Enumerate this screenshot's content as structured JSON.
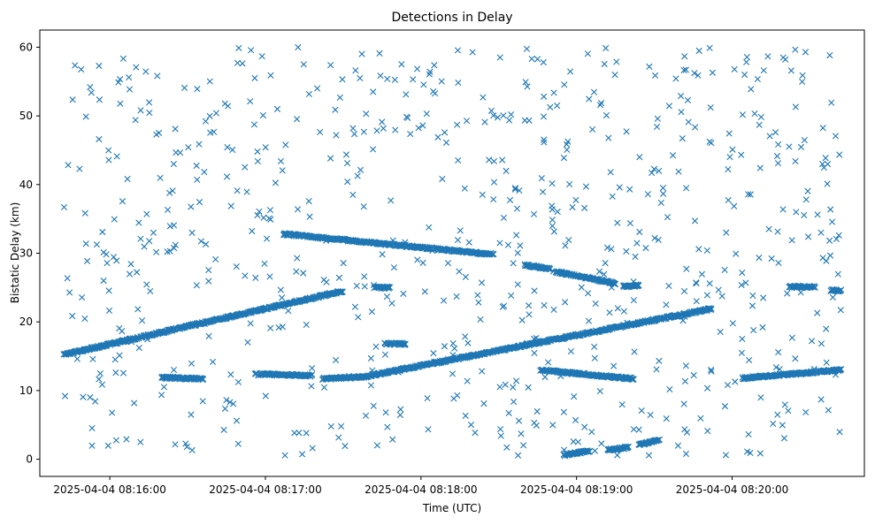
{
  "chart_data": {
    "type": "scatter",
    "title": "Detections in Delay",
    "xlabel": "Time (UTC)",
    "ylabel": "Bistatic Delay (km)",
    "x_start": "2025-04-04 08:15:42",
    "x_end": "2025-04-04 08:20:42",
    "xlim": [
      "2025-04-04 08:15:33",
      "2025-04-04 08:20:51"
    ],
    "ylim": [
      -2.5,
      62.5
    ],
    "x_ticks": [
      "2025-04-04 08:16:00",
      "2025-04-04 08:17:00",
      "2025-04-04 08:18:00",
      "2025-04-04 08:19:00",
      "2025-04-04 08:20:00"
    ],
    "y_ticks": [
      0,
      10,
      20,
      30,
      40,
      50,
      60
    ],
    "marker": "x",
    "color": "#1f77b4",
    "grid": false,
    "tracks": [
      {
        "start": "2025-04-04 08:15:42",
        "end": "2025-04-04 08:17:30",
        "from": 15.2,
        "to": 24.5
      },
      {
        "start": "2025-04-04 08:16:20",
        "end": "2025-04-04 08:16:36",
        "from": 11.9,
        "to": 11.7
      },
      {
        "start": "2025-04-04 08:16:56",
        "end": "2025-04-04 08:17:18",
        "from": 12.4,
        "to": 12.2
      },
      {
        "start": "2025-04-04 08:17:07",
        "end": "2025-04-04 08:18:28",
        "from": 32.8,
        "to": 29.8
      },
      {
        "start": "2025-04-04 08:17:22",
        "end": "2025-04-04 08:17:38",
        "from": 11.7,
        "to": 12.0
      },
      {
        "start": "2025-04-04 08:17:38",
        "end": "2025-04-04 08:19:52",
        "from": 12.0,
        "to": 21.9
      },
      {
        "start": "2025-04-04 08:17:46",
        "end": "2025-04-04 08:17:54",
        "from": 16.8,
        "to": 16.8
      },
      {
        "start": "2025-04-04 08:17:42",
        "end": "2025-04-04 08:17:48",
        "from": 25.0,
        "to": 25.0
      },
      {
        "start": "2025-04-04 08:18:40",
        "end": "2025-04-04 08:18:50",
        "from": 28.3,
        "to": 27.7
      },
      {
        "start": "2025-04-04 08:18:52",
        "end": "2025-04-04 08:19:15",
        "from": 27.3,
        "to": 25.6
      },
      {
        "start": "2025-04-04 08:18:46",
        "end": "2025-04-04 08:19:22",
        "from": 13.0,
        "to": 11.7
      },
      {
        "start": "2025-04-04 08:18:55",
        "end": "2025-04-04 08:19:05",
        "from": 0.6,
        "to": 1.2
      },
      {
        "start": "2025-04-04 08:19:12",
        "end": "2025-04-04 08:19:20",
        "from": 1.4,
        "to": 1.7
      },
      {
        "start": "2025-04-04 08:19:24",
        "end": "2025-04-04 08:19:32",
        "from": 2.1,
        "to": 2.8
      },
      {
        "start": "2025-04-04 08:19:18",
        "end": "2025-04-04 08:19:24",
        "from": 25.2,
        "to": 25.3
      },
      {
        "start": "2025-04-04 08:20:04",
        "end": "2025-04-04 08:20:42",
        "from": 11.8,
        "to": 13.0
      },
      {
        "start": "2025-04-04 08:20:22",
        "end": "2025-04-04 08:20:32",
        "from": 25.1,
        "to": 25.1
      },
      {
        "start": "2025-04-04 08:20:38",
        "end": "2025-04-04 08:20:42",
        "from": 24.6,
        "to": 24.6
      }
    ]
  }
}
